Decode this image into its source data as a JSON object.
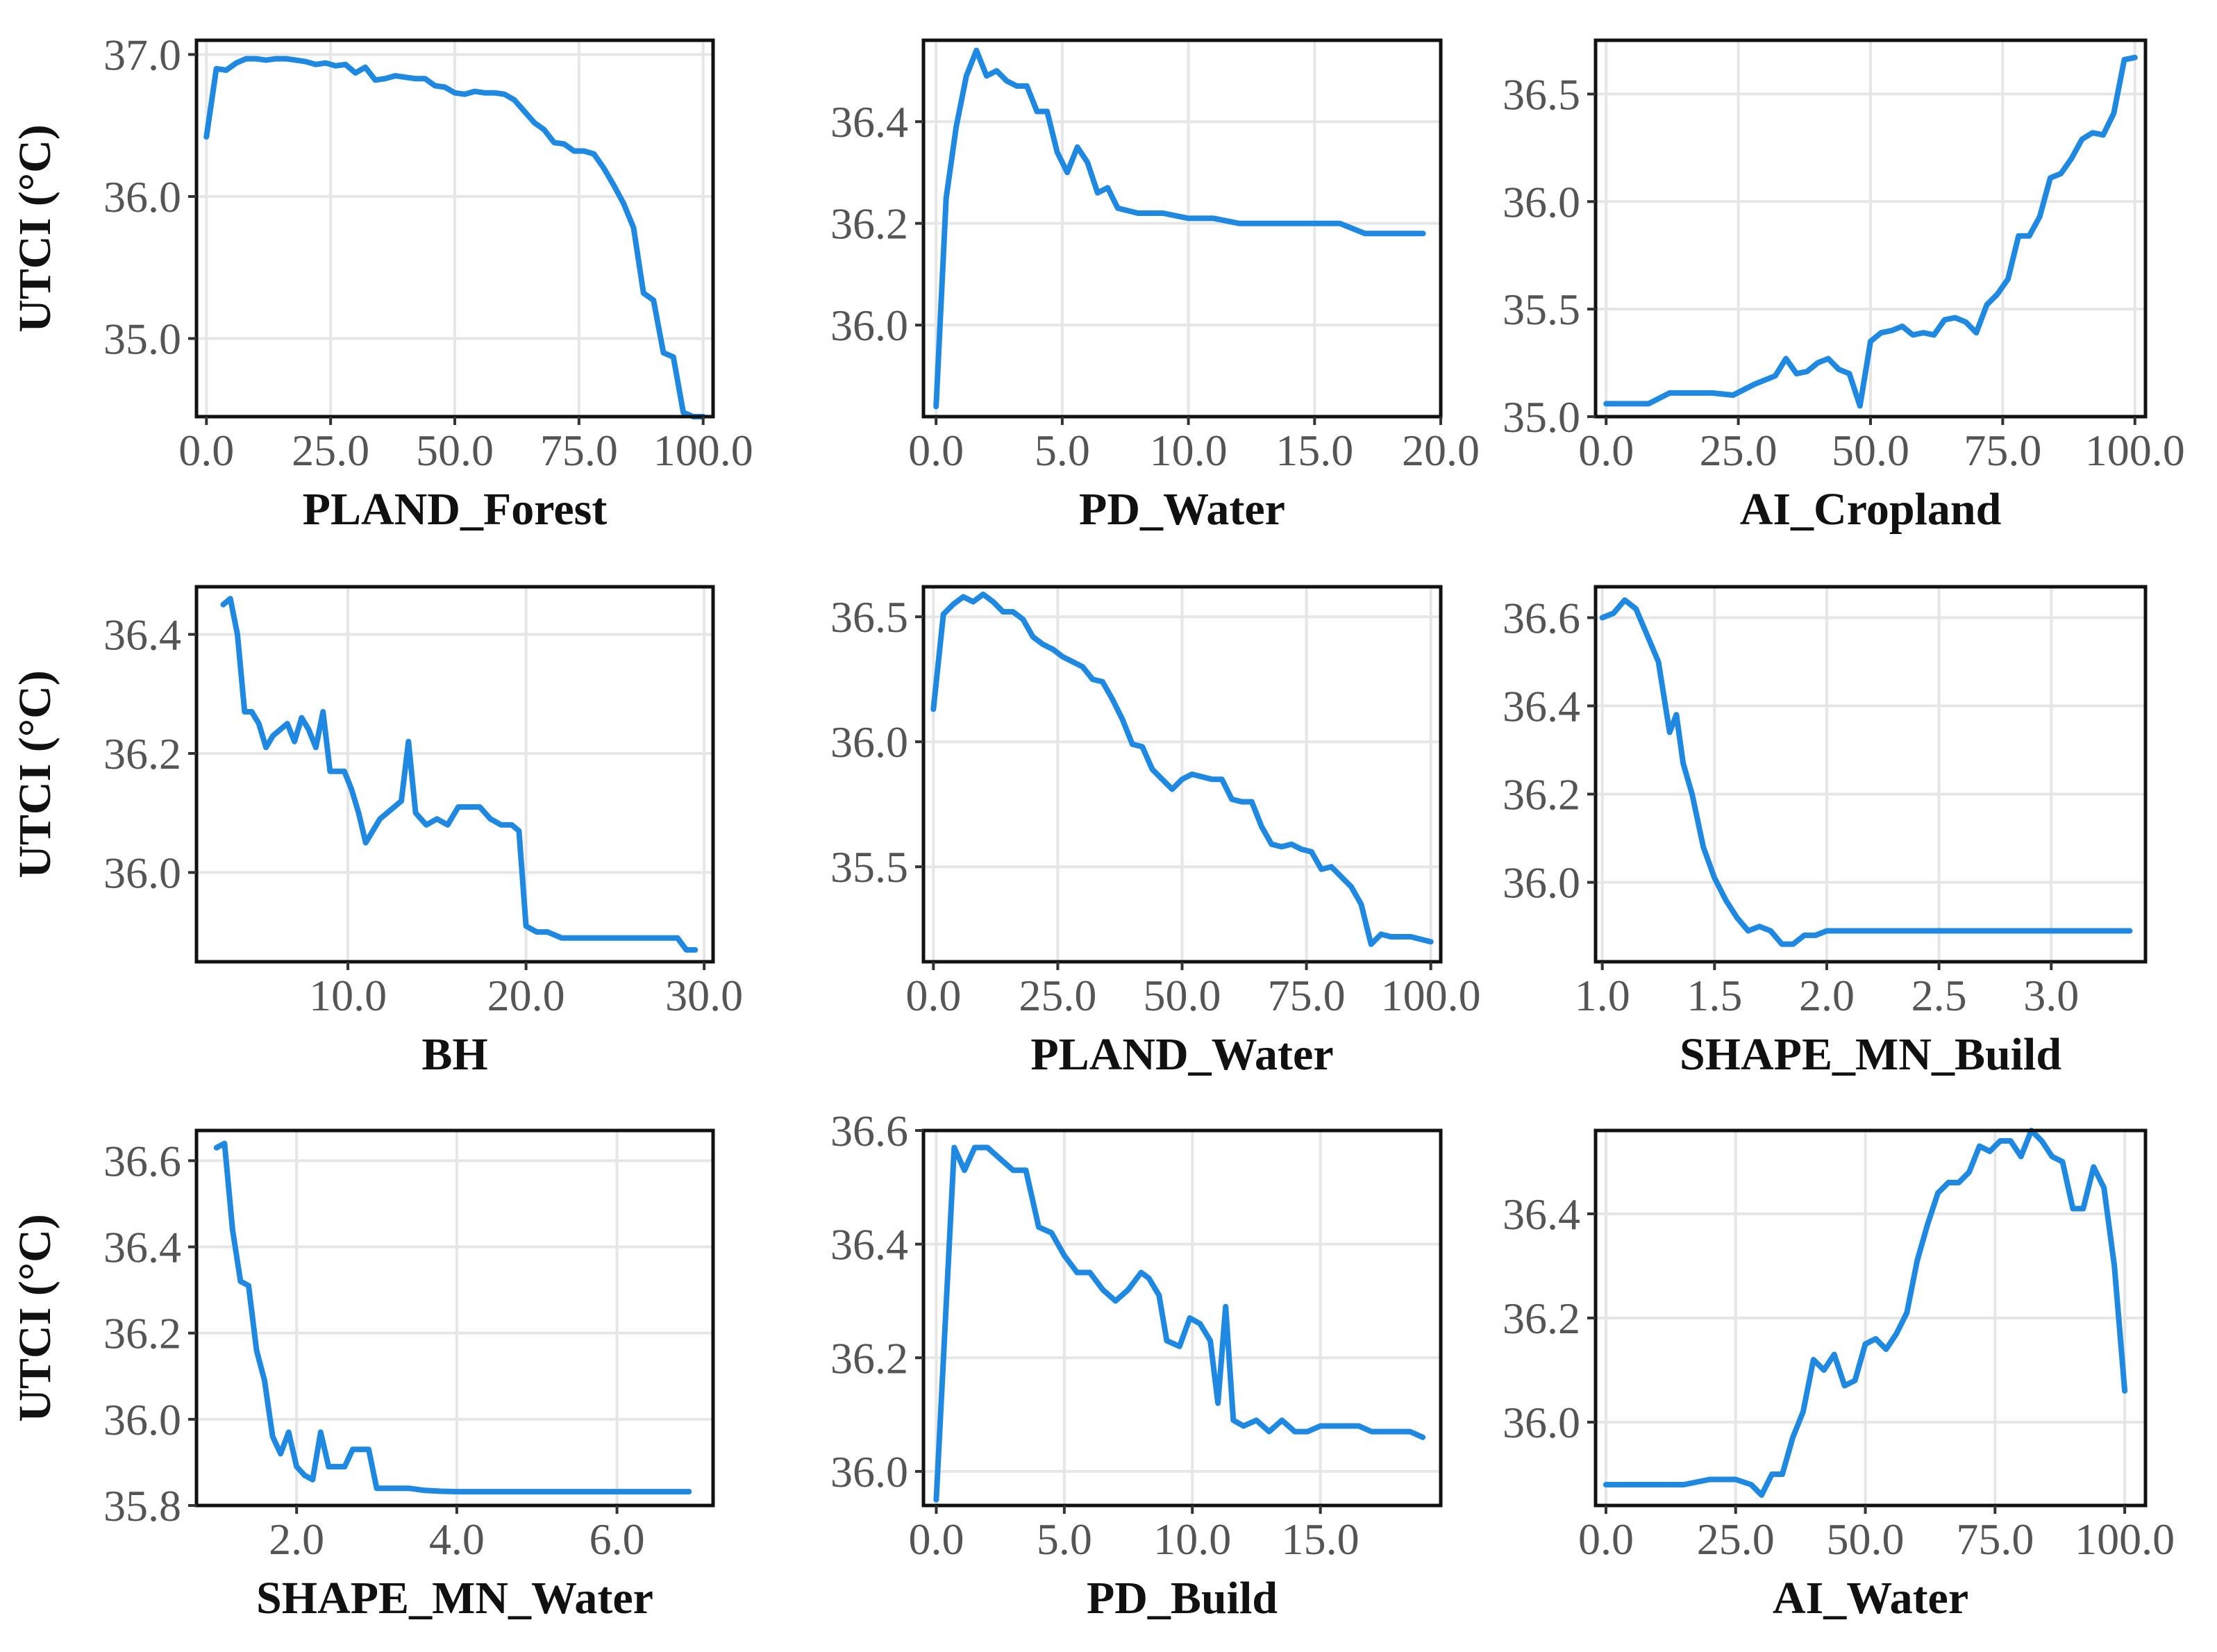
{
  "figure": {
    "layout": "3x3 grid of partial dependence line plots",
    "line_color": "#1f88e0",
    "grid": true,
    "legend": "none"
  },
  "chart_data": [
    {
      "type": "line",
      "xlabel": "PLAND_Forest",
      "ylabel": "UTCI (°C)",
      "xlim": [
        -2,
        102
      ],
      "ylim": [
        34.45,
        37.1
      ],
      "xticks": [
        0,
        25,
        50,
        75,
        100
      ],
      "xtick_labels": [
        "0.0",
        "25.0",
        "50.0",
        "75.0",
        "100.0"
      ],
      "yticks": [
        35,
        36,
        37
      ],
      "ytick_labels": [
        "35.0",
        "36.0",
        "37.0"
      ],
      "x": [
        0,
        2,
        4,
        6,
        8,
        10,
        12,
        14,
        16,
        18,
        20,
        22,
        24,
        26,
        28,
        30,
        32,
        34,
        36,
        38,
        40,
        42,
        44,
        46,
        48,
        50,
        52,
        54,
        56,
        58,
        60,
        62,
        64,
        66,
        68,
        70,
        72,
        74,
        76,
        78,
        80,
        82,
        84,
        86,
        88,
        90,
        92,
        94,
        96,
        98,
        100
      ],
      "y": [
        36.42,
        36.9,
        36.89,
        36.94,
        36.97,
        36.97,
        36.96,
        36.97,
        36.97,
        36.96,
        36.95,
        36.93,
        36.94,
        36.92,
        36.93,
        36.87,
        36.91,
        36.82,
        36.83,
        36.85,
        36.84,
        36.83,
        36.83,
        36.78,
        36.77,
        36.73,
        36.72,
        36.74,
        36.73,
        36.73,
        36.72,
        36.68,
        36.6,
        36.52,
        36.47,
        36.38,
        36.37,
        36.32,
        36.32,
        36.3,
        36.2,
        36.08,
        35.95,
        35.78,
        35.32,
        35.27,
        34.9,
        34.87,
        34.48,
        34.45,
        34.45
      ]
    },
    {
      "type": "line",
      "xlabel": "PD_Water",
      "ylabel": "",
      "xlim": [
        -0.5,
        20
      ],
      "ylim": [
        35.82,
        36.56
      ],
      "xticks": [
        0,
        5,
        10,
        15,
        20
      ],
      "xtick_labels": [
        "0.0",
        "5.0",
        "10.0",
        "15.0",
        "20.0"
      ],
      "yticks": [
        36.0,
        36.2,
        36.4
      ],
      "ytick_labels": [
        "36.0",
        "36.2",
        "36.4"
      ],
      "x": [
        0,
        0.4,
        0.8,
        1.2,
        1.6,
        2.0,
        2.4,
        2.8,
        3.2,
        3.6,
        4.0,
        4.4,
        4.8,
        5.2,
        5.6,
        6.0,
        6.4,
        6.8,
        7.2,
        8,
        9,
        10,
        11,
        12,
        13,
        14,
        15,
        15.5,
        16,
        16.5,
        17,
        18,
        19.3
      ],
      "y": [
        35.84,
        36.25,
        36.39,
        36.49,
        36.54,
        36.49,
        36.5,
        36.48,
        36.47,
        36.47,
        36.42,
        36.42,
        36.34,
        36.3,
        36.35,
        36.32,
        36.26,
        36.27,
        36.23,
        36.22,
        36.22,
        36.21,
        36.21,
        36.2,
        36.2,
        36.2,
        36.2,
        36.2,
        36.2,
        36.19,
        36.18,
        36.18,
        36.18
      ]
    },
    {
      "type": "line",
      "xlabel": "AI_Cropland",
      "ylabel": "",
      "xlim": [
        -2,
        102
      ],
      "ylim": [
        35.0,
        36.75
      ],
      "xticks": [
        0,
        25,
        50,
        75,
        100
      ],
      "xtick_labels": [
        "0.0",
        "25.0",
        "50.0",
        "75.0",
        "100.0"
      ],
      "yticks": [
        35.0,
        35.5,
        36.0,
        36.5
      ],
      "ytick_labels": [
        "35.0",
        "35.5",
        "36.0",
        "36.5"
      ],
      "x": [
        0,
        4,
        8,
        12,
        16,
        20,
        24,
        28,
        30,
        32,
        34,
        36,
        38,
        40,
        42,
        44,
        46,
        48,
        50,
        52,
        54,
        56,
        58,
        60,
        62,
        64,
        66,
        68,
        70,
        72,
        74,
        76,
        78,
        80,
        82,
        84,
        86,
        88,
        90,
        92,
        94,
        96,
        98,
        100
      ],
      "y": [
        35.06,
        35.06,
        35.06,
        35.11,
        35.11,
        35.11,
        35.1,
        35.15,
        35.17,
        35.19,
        35.27,
        35.2,
        35.21,
        35.25,
        35.27,
        35.22,
        35.2,
        35.05,
        35.35,
        35.39,
        35.4,
        35.42,
        35.38,
        35.39,
        35.38,
        35.45,
        35.46,
        35.44,
        35.39,
        35.52,
        35.57,
        35.64,
        35.84,
        35.84,
        35.93,
        36.11,
        36.13,
        36.2,
        36.29,
        36.32,
        36.31,
        36.41,
        36.66,
        36.67
      ]
    },
    {
      "type": "line",
      "xlabel": "BH",
      "ylabel": "UTCI (°C)",
      "xlim": [
        1.5,
        30.5
      ],
      "ylim": [
        35.85,
        36.48
      ],
      "xticks": [
        10,
        20,
        30
      ],
      "xtick_labels": [
        "10.0",
        "20.0",
        "30.0"
      ],
      "yticks": [
        36.0,
        36.2,
        36.4
      ],
      "ytick_labels": [
        "36.0",
        "36.2",
        "36.4"
      ],
      "x": [
        3,
        3.4,
        3.8,
        4.2,
        4.6,
        5.0,
        5.4,
        5.8,
        6.2,
        6.6,
        7.0,
        7.4,
        7.8,
        8.2,
        8.6,
        9.0,
        9.4,
        9.8,
        10.2,
        10.6,
        11.0,
        11.4,
        11.8,
        12.2,
        12.6,
        13.0,
        13.4,
        13.8,
        14.4,
        15.0,
        15.6,
        16.2,
        16.8,
        17.4,
        18.0,
        18.6,
        19.2,
        19.6,
        20.0,
        20.6,
        21.2,
        22,
        23,
        24,
        25,
        26,
        27,
        28,
        28.5,
        29,
        29.5
      ],
      "y": [
        36.45,
        36.46,
        36.4,
        36.27,
        36.27,
        36.25,
        36.21,
        36.23,
        36.24,
        36.25,
        36.22,
        36.26,
        36.24,
        36.21,
        36.27,
        36.17,
        36.17,
        36.17,
        36.14,
        36.1,
        36.05,
        36.07,
        36.09,
        36.1,
        36.11,
        36.12,
        36.22,
        36.1,
        36.08,
        36.09,
        36.08,
        36.11,
        36.11,
        36.11,
        36.09,
        36.08,
        36.08,
        36.07,
        35.91,
        35.9,
        35.9,
        35.89,
        35.89,
        35.89,
        35.89,
        35.89,
        35.89,
        35.89,
        35.89,
        35.87,
        35.87
      ]
    },
    {
      "type": "line",
      "xlabel": "PLAND_Water",
      "ylabel": "",
      "xlim": [
        -2,
        102
      ],
      "ylim": [
        35.12,
        36.62
      ],
      "xticks": [
        0,
        25,
        50,
        75,
        100
      ],
      "xtick_labels": [
        "0.0",
        "25.0",
        "50.0",
        "75.0",
        "100.0"
      ],
      "yticks": [
        35.5,
        36.0,
        36.5
      ],
      "ytick_labels": [
        "35.5",
        "36.0",
        "36.5"
      ],
      "x": [
        0,
        2,
        4,
        6,
        8,
        10,
        12,
        14,
        16,
        18,
        20,
        22,
        24,
        26,
        28,
        30,
        32,
        34,
        36,
        38,
        40,
        42,
        44,
        46,
        48,
        50,
        52,
        54,
        56,
        58,
        60,
        62,
        64,
        66,
        68,
        70,
        72,
        74,
        76,
        78,
        80,
        82,
        84,
        86,
        88,
        90,
        92,
        94,
        96,
        98,
        100
      ],
      "y": [
        36.13,
        36.51,
        36.55,
        36.58,
        36.56,
        36.59,
        36.56,
        36.52,
        36.52,
        36.49,
        36.42,
        36.39,
        36.37,
        36.34,
        36.32,
        36.3,
        36.25,
        36.24,
        36.17,
        36.09,
        35.99,
        35.98,
        35.89,
        35.85,
        35.81,
        35.85,
        35.87,
        35.86,
        35.85,
        35.85,
        35.77,
        35.76,
        35.76,
        35.66,
        35.59,
        35.58,
        35.59,
        35.57,
        35.56,
        35.49,
        35.5,
        35.46,
        35.42,
        35.35,
        35.19,
        35.23,
        35.22,
        35.22,
        35.22,
        35.21,
        35.2
      ]
    },
    {
      "type": "line",
      "xlabel": "SHAPE_MN_Build",
      "ylabel": "",
      "xlim": [
        0.97,
        3.42
      ],
      "ylim": [
        35.82,
        36.67
      ],
      "xticks": [
        1.0,
        1.5,
        2.0,
        2.5,
        3.0
      ],
      "xtick_labels": [
        "1.0",
        "1.5",
        "2.0",
        "2.5",
        "3.0"
      ],
      "yticks": [
        36.0,
        36.2,
        36.4,
        36.6
      ],
      "ytick_labels": [
        "36.0",
        "36.2",
        "36.4",
        "36.6"
      ],
      "x": [
        1.0,
        1.05,
        1.1,
        1.15,
        1.2,
        1.25,
        1.3,
        1.33,
        1.36,
        1.4,
        1.45,
        1.5,
        1.55,
        1.6,
        1.65,
        1.7,
        1.75,
        1.8,
        1.85,
        1.9,
        1.95,
        2.0,
        2.2,
        2.6,
        3.0,
        3.35
      ],
      "y": [
        36.6,
        36.61,
        36.64,
        36.62,
        36.56,
        36.5,
        36.34,
        36.38,
        36.27,
        36.2,
        36.08,
        36.01,
        35.96,
        35.92,
        35.89,
        35.9,
        35.89,
        35.86,
        35.86,
        35.88,
        35.88,
        35.89,
        35.89,
        35.89,
        35.89,
        35.89
      ]
    },
    {
      "type": "line",
      "xlabel": "SHAPE_MN_Water",
      "ylabel": "UTCI (°C)",
      "xlim": [
        0.75,
        7.2
      ],
      "ylim": [
        35.8,
        36.67
      ],
      "xticks": [
        2,
        4,
        6
      ],
      "xtick_labels": [
        "2.0",
        "4.0",
        "6.0"
      ],
      "yticks": [
        35.8,
        36.0,
        36.2,
        36.4,
        36.6
      ],
      "ytick_labels": [
        "35.8",
        "36.0",
        "36.2",
        "36.4",
        "36.6"
      ],
      "x": [
        1.0,
        1.1,
        1.2,
        1.3,
        1.4,
        1.5,
        1.6,
        1.7,
        1.8,
        1.9,
        2.0,
        2.1,
        2.2,
        2.3,
        2.4,
        2.5,
        2.6,
        2.7,
        2.8,
        2.9,
        3.0,
        3.1,
        3.2,
        3.3,
        3.4,
        3.6,
        3.8,
        4.0,
        4.5,
        5,
        5.5,
        6,
        6.5,
        6.9
      ],
      "y": [
        36.63,
        36.64,
        36.44,
        36.32,
        36.31,
        36.16,
        36.09,
        35.96,
        35.92,
        35.97,
        35.89,
        35.87,
        35.86,
        35.97,
        35.89,
        35.89,
        35.89,
        35.93,
        35.93,
        35.93,
        35.84,
        35.84,
        35.84,
        35.84,
        35.84,
        35.835,
        35.833,
        35.832,
        35.832,
        35.832,
        35.832,
        35.832,
        35.832,
        35.832
      ]
    },
    {
      "type": "line",
      "xlabel": "PD_Build",
      "ylabel": "",
      "xlim": [
        -0.5,
        19.7
      ],
      "ylim": [
        35.94,
        36.6
      ],
      "xticks": [
        0,
        5,
        10,
        15
      ],
      "xtick_labels": [
        "0.0",
        "5.0",
        "10.0",
        "15.0"
      ],
      "yticks": [
        36.0,
        36.2,
        36.4,
        36.6
      ],
      "ytick_labels": [
        "36.0",
        "36.2",
        "36.4",
        "36.6"
      ],
      "x": [
        0,
        0.7,
        1.1,
        1.5,
        2.0,
        2.5,
        3.0,
        3.5,
        4.0,
        4.5,
        5.0,
        5.5,
        6.0,
        6.5,
        7.0,
        7.5,
        8.0,
        8.3,
        8.7,
        9.0,
        9.5,
        9.9,
        10.3,
        10.7,
        11.0,
        11.3,
        11.6,
        12.0,
        12.5,
        13.0,
        13.5,
        14.0,
        14.5,
        15.0,
        15.5,
        16.0,
        16.5,
        17.0,
        17.5,
        18.0,
        18.5,
        19.0
      ],
      "y": [
        35.95,
        36.57,
        36.53,
        36.57,
        36.57,
        36.55,
        36.53,
        36.53,
        36.43,
        36.42,
        36.38,
        36.35,
        36.35,
        36.32,
        36.3,
        36.32,
        36.35,
        36.34,
        36.31,
        36.23,
        36.22,
        36.27,
        36.26,
        36.23,
        36.12,
        36.29,
        36.09,
        36.08,
        36.09,
        36.07,
        36.09,
        36.07,
        36.07,
        36.08,
        36.08,
        36.08,
        36.08,
        36.07,
        36.07,
        36.07,
        36.07,
        36.06
      ]
    },
    {
      "type": "line",
      "xlabel": "AI_Water",
      "ylabel": "",
      "xlim": [
        -2,
        104
      ],
      "ylim": [
        35.84,
        36.56
      ],
      "xticks": [
        0,
        25,
        50,
        75,
        100
      ],
      "xtick_labels": [
        "0.0",
        "25.0",
        "50.0",
        "75.0",
        "100.0"
      ],
      "yticks": [
        36.0,
        36.2,
        36.4
      ],
      "ytick_labels": [
        "36.0",
        "36.2",
        "36.4"
      ],
      "x": [
        0,
        5,
        10,
        15,
        20,
        25,
        28,
        30,
        32,
        34,
        36,
        38,
        40,
        42,
        44,
        46,
        48,
        50,
        52,
        54,
        56,
        58,
        60,
        62,
        64,
        66,
        68,
        70,
        72,
        74,
        76,
        78,
        80,
        82,
        84,
        86,
        88,
        90,
        92,
        94,
        96,
        98,
        100
      ],
      "y": [
        35.88,
        35.88,
        35.88,
        35.88,
        35.89,
        35.89,
        35.88,
        35.86,
        35.9,
        35.9,
        35.97,
        36.02,
        36.12,
        36.1,
        36.13,
        36.07,
        36.08,
        36.15,
        36.16,
        36.14,
        36.17,
        36.21,
        36.31,
        36.38,
        36.44,
        36.46,
        36.46,
        36.48,
        36.53,
        36.52,
        36.54,
        36.54,
        36.51,
        36.56,
        36.54,
        36.51,
        36.5,
        36.41,
        36.41,
        36.49,
        36.45,
        36.3,
        36.06
      ]
    }
  ]
}
